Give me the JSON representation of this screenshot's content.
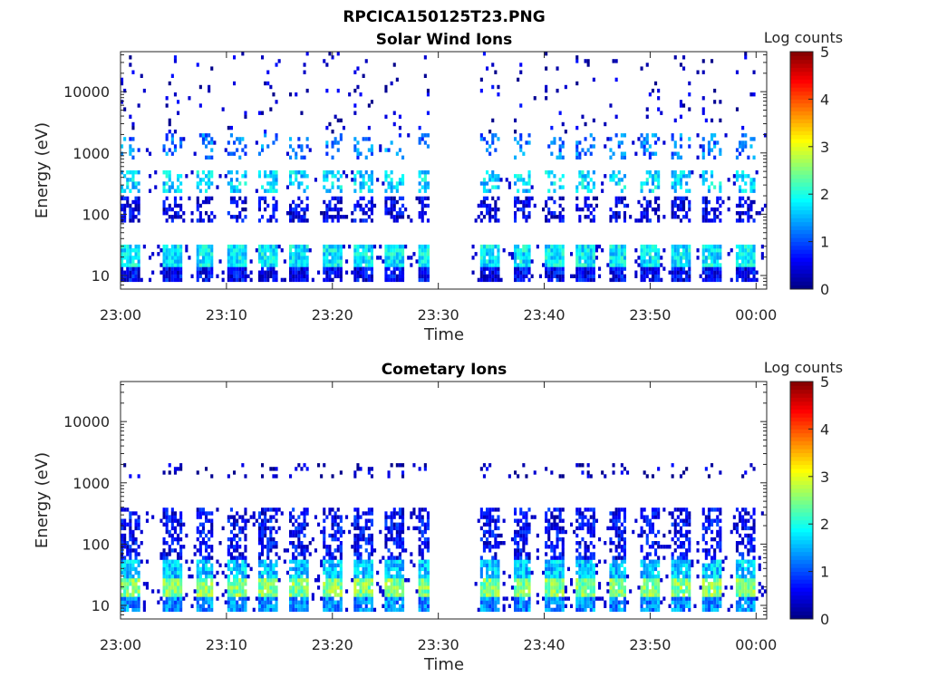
{
  "figure_title": "RPCICA150125T23.PNG",
  "chart_data": [
    {
      "type": "heatmap",
      "title": "Solar Wind Ions",
      "xlabel": "Time",
      "ylabel": "Energy (eV)",
      "x_range": [
        "23:00",
        "00:01"
      ],
      "x_ticks": [
        "23:00",
        "23:10",
        "23:20",
        "23:30",
        "23:40",
        "23:50",
        "00:00"
      ],
      "y_scale": "log",
      "y_range": [
        6,
        45000
      ],
      "y_ticks": [
        {
          "value": 10,
          "label": "10"
        },
        {
          "value": 100,
          "label": "100"
        },
        {
          "value": 1000,
          "label": "1000"
        },
        {
          "value": 10000,
          "label": "10000"
        }
      ],
      "colorbar": {
        "label": "Log counts",
        "range": [
          0,
          5
        ],
        "ticks": [
          "0",
          "1",
          "2",
          "3",
          "4",
          "5"
        ],
        "colormap": "jet"
      },
      "data_gap": [
        "23:29",
        "23:33"
      ],
      "sweep_times": [
        "23:00",
        "23:04",
        "23:07",
        "23:10",
        "23:13",
        "23:16",
        "23:19",
        "23:22",
        "23:25",
        "23:28",
        "23:34",
        "23:37",
        "23:40",
        "23:43",
        "23:46",
        "23:49",
        "23:52",
        "23:55",
        "23:58"
      ],
      "bands": [
        {
          "energy_range": [
            8,
            14
          ],
          "log_counts": 0.6,
          "fill": 0.95
        },
        {
          "energy_range": [
            14,
            30
          ],
          "log_counts": 1.8,
          "fill": 0.95
        },
        {
          "energy_range": [
            70,
            200
          ],
          "log_counts": 0.5,
          "fill": 0.55
        },
        {
          "energy_range": [
            220,
            500
          ],
          "log_counts": 1.7,
          "fill": 0.5
        },
        {
          "energy_range": [
            800,
            2000
          ],
          "log_counts": 1.2,
          "fill": 0.3
        },
        {
          "energy_range": [
            2000,
            45000
          ],
          "log_counts": 0.3,
          "fill": 0.07
        }
      ]
    },
    {
      "type": "heatmap",
      "title": "Cometary Ions",
      "xlabel": "Time",
      "ylabel": "Energy (eV)",
      "x_range": [
        "23:00",
        "00:01"
      ],
      "x_ticks": [
        "23:00",
        "23:10",
        "23:20",
        "23:30",
        "23:40",
        "23:50",
        "00:00"
      ],
      "y_scale": "log",
      "y_range": [
        6,
        45000
      ],
      "y_ticks": [
        {
          "value": 10,
          "label": "10"
        },
        {
          "value": 100,
          "label": "100"
        },
        {
          "value": 1000,
          "label": "1000"
        },
        {
          "value": 10000,
          "label": "10000"
        }
      ],
      "colorbar": {
        "label": "Log counts",
        "range": [
          0,
          5
        ],
        "ticks": [
          "0",
          "1",
          "2",
          "3",
          "4",
          "5"
        ],
        "colormap": "jet"
      },
      "data_gap": [
        "23:29",
        "23:33"
      ],
      "sweep_times": [
        "23:00",
        "23:04",
        "23:07",
        "23:10",
        "23:13",
        "23:16",
        "23:19",
        "23:22",
        "23:25",
        "23:28",
        "23:34",
        "23:37",
        "23:40",
        "23:43",
        "23:46",
        "23:49",
        "23:52",
        "23:55",
        "23:58"
      ],
      "bands": [
        {
          "energy_range": [
            8,
            13
          ],
          "log_counts": 1.3,
          "fill": 0.95
        },
        {
          "energy_range": [
            13,
            28
          ],
          "log_counts": 2.5,
          "fill": 0.95
        },
        {
          "energy_range": [
            28,
            55
          ],
          "log_counts": 1.6,
          "fill": 0.9
        },
        {
          "energy_range": [
            55,
            400
          ],
          "log_counts": 0.6,
          "fill": 0.6
        },
        {
          "energy_range": [
            1200,
            2000
          ],
          "log_counts": 0.3,
          "fill": 0.2
        }
      ]
    }
  ]
}
